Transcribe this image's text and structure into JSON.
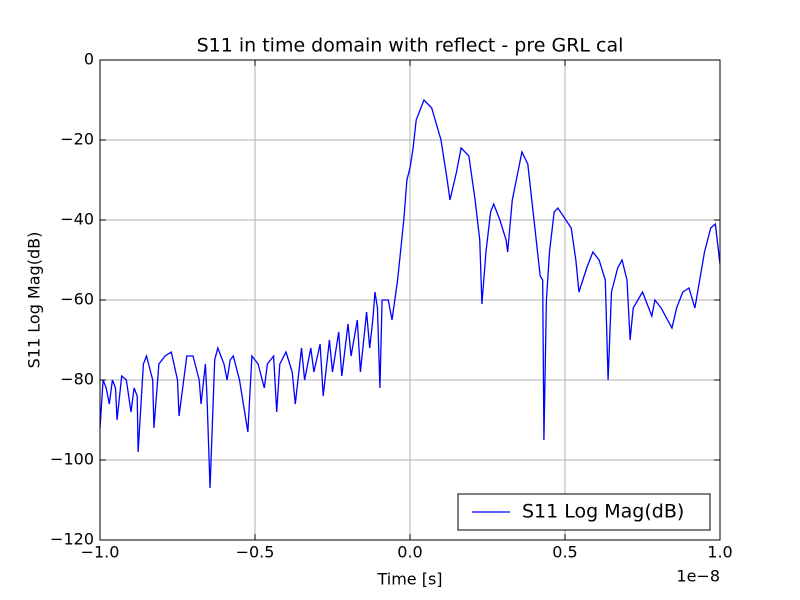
{
  "chart_data": {
    "type": "line",
    "title": "S11 in time domain with reflect - pre GRL cal",
    "x_label": "Time [s]",
    "y_label": "S11 Log Mag(dB)",
    "x_offset_label": "1e−8",
    "xlim": [
      -1,
      1
    ],
    "ylim": [
      -120,
      0
    ],
    "xticks": [
      {
        "value": -1,
        "label": "−1.0"
      },
      {
        "value": -0.5,
        "label": "−0.5"
      },
      {
        "value": 0,
        "label": "0.0"
      },
      {
        "value": 0.5,
        "label": "0.5"
      },
      {
        "value": 1,
        "label": "1.0"
      }
    ],
    "yticks": [
      {
        "value": -120,
        "label": "−120"
      },
      {
        "value": -100,
        "label": "−100"
      },
      {
        "value": -80,
        "label": "−80"
      },
      {
        "value": -60,
        "label": "−60"
      },
      {
        "value": -40,
        "label": "−40"
      },
      {
        "value": -20,
        "label": "−20"
      },
      0
    ],
    "grid": true,
    "legend": "lower right",
    "x": [
      -1.0,
      -0.99,
      -0.98,
      -0.97,
      -0.96,
      -0.95,
      -0.945,
      -0.93,
      -0.915,
      -0.9,
      -0.89,
      -0.88,
      -0.877,
      -0.86,
      -0.85,
      -0.83,
      -0.826,
      -0.81,
      -0.79,
      -0.77,
      -0.75,
      -0.745,
      -0.72,
      -0.7,
      -0.68,
      -0.674,
      -0.66,
      -0.655,
      -0.645,
      -0.63,
      -0.62,
      -0.6,
      -0.59,
      -0.58,
      -0.57,
      -0.55,
      -0.523,
      -0.51,
      -0.49,
      -0.47,
      -0.46,
      -0.44,
      -0.43,
      -0.42,
      -0.4,
      -0.38,
      -0.37,
      -0.35,
      -0.34,
      -0.32,
      -0.31,
      -0.29,
      -0.28,
      -0.26,
      -0.25,
      -0.23,
      -0.22,
      -0.2,
      -0.19,
      -0.17,
      -0.16,
      -0.14,
      -0.13,
      -0.12,
      -0.113,
      -0.105,
      -0.097,
      -0.09,
      -0.07,
      -0.058,
      -0.04,
      -0.02,
      -0.01,
      0,
      0.01,
      0.02,
      0.045,
      0.07,
      0.1,
      0.12,
      0.129,
      0.15,
      0.165,
      0.19,
      0.21,
      0.225,
      0.232,
      0.245,
      0.26,
      0.27,
      0.29,
      0.31,
      0.315,
      0.33,
      0.361,
      0.38,
      0.4,
      0.42,
      0.428,
      0.432,
      0.44,
      0.45,
      0.465,
      0.477,
      0.52,
      0.535,
      0.545,
      0.57,
      0.59,
      0.61,
      0.63,
      0.639,
      0.65,
      0.67,
      0.684,
      0.7,
      0.71,
      0.72,
      0.735,
      0.75,
      0.77,
      0.78,
      0.79,
      0.81,
      0.845,
      0.86,
      0.88,
      0.9,
      0.919,
      0.95,
      0.97,
      0.985,
      1.0
    ],
    "series": [
      {
        "name": "S11 Log Mag(dB)",
        "color": "#0000ff",
        "values": [
          -92,
          -80,
          -82,
          -86,
          -80,
          -82,
          -90,
          -79,
          -80,
          -88,
          -82,
          -84,
          -98,
          -76,
          -74,
          -80,
          -92,
          -76,
          -74,
          -73,
          -80,
          -89,
          -74,
          -74,
          -80,
          -86,
          -76,
          -84,
          -107,
          -75,
          -72,
          -76,
          -80,
          -75,
          -74,
          -80,
          -93,
          -74,
          -76,
          -82,
          -76,
          -74,
          -88,
          -76,
          -73,
          -78,
          -86,
          -72,
          -80,
          -72,
          -78,
          -71,
          -84,
          -70,
          -78,
          -68,
          -79,
          -66,
          -74,
          -65,
          -78,
          -63,
          -72,
          -65,
          -58,
          -62,
          -82,
          -60,
          -60,
          -65,
          -55,
          -40,
          -30,
          -27,
          -22,
          -15,
          -10,
          -12,
          -20,
          -30,
          -35,
          -28,
          -22,
          -24,
          -35,
          -45,
          -61,
          -48,
          -38,
          -36,
          -40,
          -45,
          -48,
          -35,
          -23,
          -26,
          -40,
          -54,
          -55,
          -95,
          -60,
          -48,
          -38,
          -37,
          -42,
          -50,
          -58,
          -52,
          -48,
          -50,
          -55,
          -80,
          -58,
          -52,
          -50,
          -55,
          -70,
          -62,
          -60,
          -58,
          -62,
          -64,
          -60,
          -62,
          -67,
          -62,
          -58,
          -57,
          -62,
          -48,
          -42,
          -41,
          -51
        ]
      }
    ]
  }
}
